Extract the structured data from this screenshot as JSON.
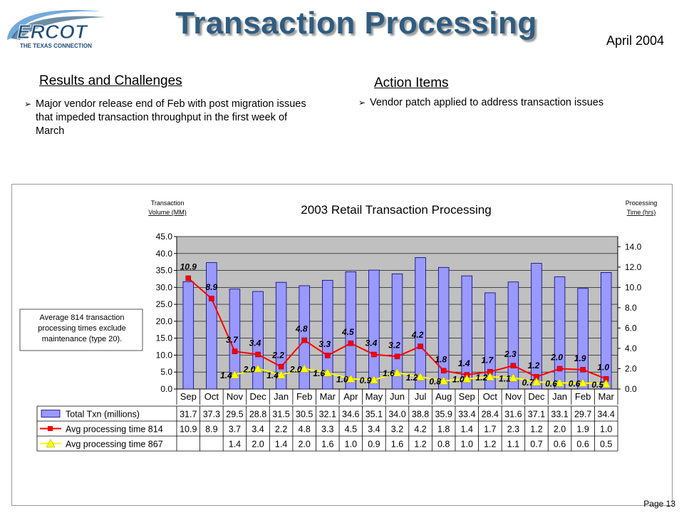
{
  "header": {
    "logo_text": "ERCOT",
    "logo_tagline": "THE TEXAS CONNECTION",
    "title": "Transaction Processing",
    "date": "April 2004"
  },
  "results": {
    "heading": "Results and Challenges",
    "bullets": [
      "Major vendor release end of Feb with post migration issues that impeded transaction throughput in the first week of March"
    ]
  },
  "actions": {
    "heading": "Action Items",
    "bullets": [
      "Vendor patch applied to address transaction issues"
    ]
  },
  "annotation": "Average 814 transaction processing times exclude maintenance (type 20).",
  "page": "Page 13",
  "colors": {
    "title": "#2f5c80",
    "bar": "#9999ff",
    "line814": "#ff0000",
    "line867": "#ffff00",
    "plot_bg": "#c0c0c0"
  },
  "chart_data": {
    "type": "bar",
    "title": "2003 Retail Transaction Processing",
    "ylabel_left": "Transaction Volume (MM)",
    "ylabel_right": "Processing Time (hrs)",
    "categories": [
      "Sep",
      "Oct",
      "Nov",
      "Dec",
      "Jan",
      "Feb",
      "Mar",
      "Apr",
      "May",
      "Jun",
      "Jul",
      "Aug",
      "Sep",
      "Oct",
      "Nov",
      "Dec",
      "Jan",
      "Feb",
      "Mar"
    ],
    "left_axis": {
      "min": 0,
      "max": 45,
      "step": 5,
      "ticks": [
        "0.0",
        "5.0",
        "10.0",
        "15.0",
        "20.0",
        "25.0",
        "30.0",
        "35.0",
        "40.0",
        "45.0"
      ]
    },
    "right_axis": {
      "min": 0,
      "max": 15,
      "step": 2,
      "ticks": [
        "0.0",
        "2.0",
        "4.0",
        "6.0",
        "8.0",
        "10.0",
        "12.0",
        "14.0"
      ]
    },
    "grid": true,
    "legend": "data-table-below",
    "series": [
      {
        "name": "Total Txn (millions)",
        "type": "bar",
        "axis": "left",
        "values": [
          31.7,
          37.3,
          29.5,
          28.8,
          31.5,
          30.5,
          32.1,
          34.6,
          35.1,
          34.0,
          38.8,
          35.9,
          33.4,
          28.4,
          31.6,
          37.1,
          33.1,
          29.7,
          34.4
        ],
        "labels": [
          "31.7",
          "37.3",
          "29.5",
          "28.8",
          "31.5",
          "30.5",
          "32.1",
          "34.6",
          "35.1",
          "34.0",
          "38.8",
          "35.9",
          "33.4",
          "28.4",
          "31.6",
          "37.1",
          "33.1",
          "29.7",
          "34.4"
        ]
      },
      {
        "name": "Avg processing time 814",
        "type": "line",
        "axis": "right",
        "values": [
          10.9,
          8.9,
          3.7,
          3.4,
          2.2,
          4.8,
          3.3,
          4.5,
          3.4,
          3.2,
          4.2,
          1.8,
          1.4,
          1.7,
          2.3,
          1.2,
          2.0,
          1.9,
          1.0
        ],
        "labels": [
          "10.9",
          "8.9",
          "3.7",
          "3.4",
          "2.2",
          "4.8",
          "3.3",
          "4.5",
          "3.4",
          "3.2",
          "4.2",
          "1.8",
          "1.4",
          "1.7",
          "2.3",
          "1.2",
          "2.0",
          "1.9",
          "1.0"
        ]
      },
      {
        "name": "Avg processing time 867",
        "type": "line",
        "axis": "right",
        "values": [
          null,
          null,
          1.4,
          2.0,
          1.4,
          2.0,
          1.6,
          1.0,
          0.9,
          1.6,
          1.2,
          0.8,
          1.0,
          1.2,
          1.1,
          0.7,
          0.6,
          0.6,
          0.5
        ],
        "labels": [
          "",
          "",
          "1.4",
          "2.0",
          "1.4",
          "2.0",
          "1.6",
          "1.0",
          "0.9",
          "1.6",
          "1.2",
          "0.8",
          "1.0",
          "1.2",
          "1.1",
          "0.7",
          "0.6",
          "0.6",
          "0.5"
        ]
      }
    ]
  }
}
